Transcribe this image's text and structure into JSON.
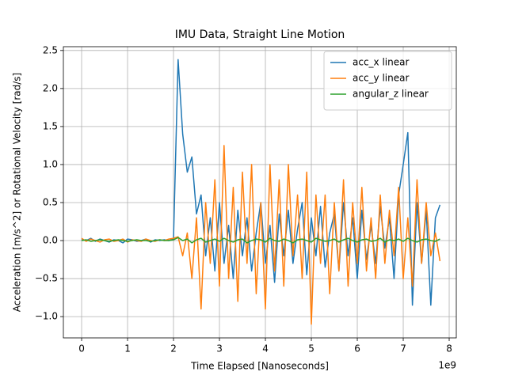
{
  "chart_data": {
    "type": "line",
    "title": "IMU Data, Straight Line Motion",
    "x_label": "Time Elapsed [Nanoseconds]",
    "x_offset_label": "1e9",
    "y_label": "Acceleration [m/s^2] or Rotational Velocity [rad/s]",
    "x": [
      0,
      100000000,
      200000000,
      300000000,
      400000000,
      500000000,
      600000000,
      700000000,
      800000000,
      900000000,
      1000000000,
      1100000000,
      1200000000,
      1300000000,
      1400000000,
      1500000000,
      1600000000,
      1700000000,
      1800000000,
      1900000000,
      2000000000,
      2100000000,
      2200000000,
      2300000000,
      2400000000,
      2500000000,
      2600000000,
      2700000000,
      2800000000,
      2900000000,
      3000000000,
      3100000000,
      3200000000,
      3300000000,
      3400000000,
      3500000000,
      3600000000,
      3700000000,
      3800000000,
      3900000000,
      4000000000,
      4100000000,
      4200000000,
      4300000000,
      4400000000,
      4500000000,
      4600000000,
      4700000000,
      4800000000,
      4900000000,
      5000000000,
      5100000000,
      5200000000,
      5300000000,
      5400000000,
      5500000000,
      5600000000,
      5700000000,
      5800000000,
      5900000000,
      6000000000,
      6100000000,
      6200000000,
      6300000000,
      6400000000,
      6500000000,
      6600000000,
      6700000000,
      6800000000,
      6900000000,
      7000000000,
      7100000000,
      7200000000,
      7300000000,
      7400000000,
      7500000000,
      7600000000,
      7700000000,
      7800000000
    ],
    "series": [
      {
        "name": "acc_x linear",
        "color": "#1f77b4",
        "values": [
          0.01,
          0.0,
          0.03,
          -0.01,
          0.02,
          0.0,
          -0.02,
          0.01,
          0.0,
          -0.03,
          0.02,
          0.01,
          -0.01,
          0.0,
          0.02,
          -0.02,
          0.01,
          0.0,
          0.01,
          0.0,
          0.02,
          2.38,
          1.4,
          0.9,
          1.1,
          0.35,
          0.6,
          -0.2,
          0.3,
          -0.4,
          0.5,
          -0.3,
          0.2,
          -0.5,
          0.4,
          -0.2,
          0.3,
          -0.4,
          0.1,
          0.5,
          -0.3,
          0.2,
          -0.55,
          0.35,
          -0.2,
          0.4,
          -0.3,
          0.15,
          0.5,
          -0.45,
          0.3,
          -0.2,
          0.45,
          -0.35,
          0.1,
          0.35,
          -0.4,
          0.5,
          -0.2,
          0.3,
          -0.5,
          0.4,
          -0.25,
          0.2,
          -0.3,
          0.45,
          -0.1,
          0.3,
          -0.5,
          0.6,
          1.0,
          1.42,
          -0.85,
          0.5,
          -0.3,
          0.4,
          -0.85,
          0.3,
          0.47
        ]
      },
      {
        "name": "acc_y linear",
        "color": "#ff7f0e",
        "values": [
          0.03,
          -0.01,
          0.02,
          0.0,
          -0.02,
          0.01,
          0.02,
          -0.01,
          0.0,
          0.02,
          -0.02,
          0.01,
          0.0,
          -0.01,
          0.02,
          0.0,
          -0.01,
          0.01,
          0.0,
          0.02,
          0.03,
          0.05,
          -0.2,
          0.1,
          -0.5,
          0.3,
          -0.9,
          0.5,
          -0.3,
          0.8,
          -0.6,
          1.25,
          -0.5,
          0.7,
          -0.8,
          0.9,
          -0.3,
          1.0,
          -0.7,
          0.5,
          -0.9,
          1.0,
          -0.4,
          0.8,
          -0.6,
          1.0,
          -0.2,
          0.6,
          -0.5,
          0.9,
          -1.1,
          0.6,
          -0.3,
          0.6,
          -0.7,
          0.5,
          -0.4,
          0.8,
          -0.6,
          0.5,
          -0.3,
          0.7,
          -0.4,
          0.3,
          -0.5,
          0.6,
          -0.3,
          0.4,
          -0.2,
          0.7,
          -0.5,
          0.3,
          -0.6,
          0.8,
          -0.3,
          0.5,
          -0.2,
          0.1,
          -0.27
        ]
      },
      {
        "name": "angular_z linear",
        "color": "#2ca02c",
        "values": [
          0.0,
          0.01,
          -0.01,
          0.0,
          0.01,
          0.0,
          -0.01,
          0.0,
          0.01,
          0.0,
          -0.01,
          0.0,
          0.01,
          0.0,
          0.0,
          -0.01,
          0.0,
          0.01,
          0.0,
          0.0,
          0.01,
          0.04,
          0.0,
          0.02,
          -0.03,
          0.01,
          0.03,
          -0.02,
          0.0,
          0.02,
          -0.01,
          0.03,
          0.0,
          -0.02,
          0.01,
          0.02,
          -0.03,
          0.0,
          0.02,
          0.01,
          -0.02,
          0.03,
          0.0,
          -0.01,
          0.02,
          0.0,
          -0.03,
          0.01,
          0.02,
          0.0,
          -0.02,
          0.03,
          0.01,
          -0.01,
          0.0,
          0.02,
          -0.02,
          0.01,
          0.03,
          0.0,
          -0.02,
          0.01,
          0.02,
          -0.01,
          0.0,
          0.03,
          -0.02,
          0.01,
          0.0,
          0.02,
          -0.01,
          0.03,
          0.0,
          -0.02,
          0.01,
          0.02,
          0.0,
          -0.01,
          0.02
        ]
      }
    ],
    "xlim": [
      -397000000,
      8155000000
    ],
    "ylim": [
      -1.28,
      2.55
    ],
    "xticks": [
      {
        "value": 0,
        "label": "0"
      },
      {
        "value": 1000000000,
        "label": "1"
      },
      {
        "value": 2000000000,
        "label": "2"
      },
      {
        "value": 3000000000,
        "label": "3"
      },
      {
        "value": 4000000000,
        "label": "4"
      },
      {
        "value": 5000000000,
        "label": "5"
      },
      {
        "value": 6000000000,
        "label": "6"
      },
      {
        "value": 7000000000,
        "label": "7"
      },
      {
        "value": 8000000000,
        "label": "8"
      }
    ],
    "yticks": [
      {
        "value": -1.0,
        "label": "−1.0"
      },
      {
        "value": -0.5,
        "label": "−0.5"
      },
      {
        "value": 0.0,
        "label": "0.0"
      },
      0.5,
      {
        "value": 1.0,
        "label": "1.0"
      },
      1.5,
      {
        "value": 2.0,
        "label": "2.0"
      },
      2.5
    ],
    "grid": true,
    "legend": "upper right"
  }
}
